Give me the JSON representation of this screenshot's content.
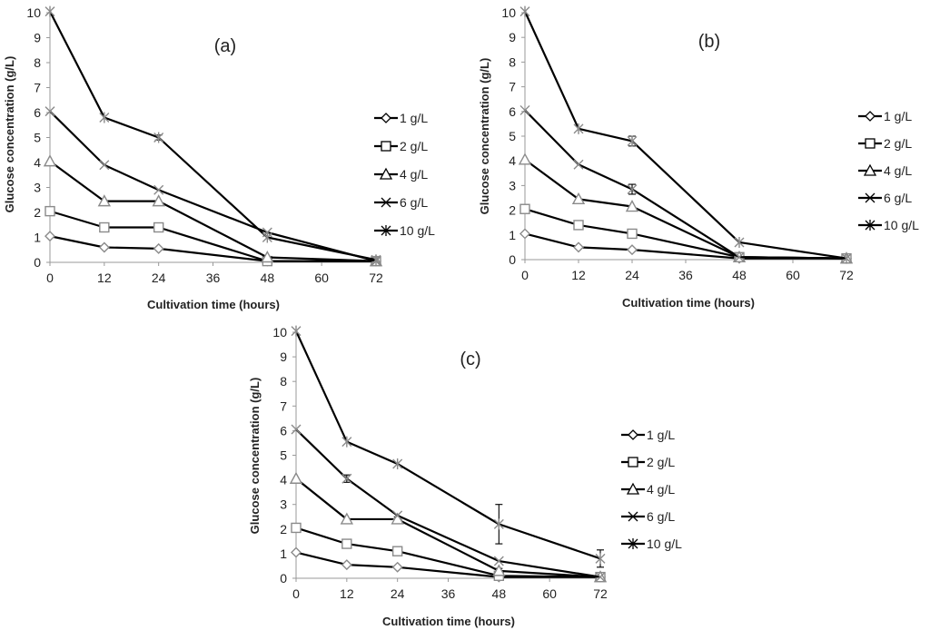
{
  "chart_data": [
    {
      "type": "line",
      "title": "(a)",
      "xlabel": "Cultivation time (hours)",
      "ylabel": "Glucose concentration (g/L)",
      "x": [
        0,
        12,
        24,
        48,
        72
      ],
      "xticks": [
        "0",
        "12",
        "24",
        "36",
        "48",
        "60",
        "72"
      ],
      "xlim": [
        0,
        72
      ],
      "ylim": [
        0,
        10
      ],
      "yticks": [
        "0",
        "1",
        "2",
        "3",
        "4",
        "5",
        "6",
        "7",
        "8",
        "9",
        "10"
      ],
      "legend_position": "right",
      "series": [
        {
          "name": "1 g/L",
          "marker": "diamond",
          "values": [
            1.05,
            0.6,
            0.55,
            0.05,
            0.05
          ],
          "errors": [
            0,
            0,
            0,
            0,
            0
          ]
        },
        {
          "name": "2 g/L",
          "marker": "square",
          "values": [
            2.05,
            1.4,
            1.4,
            0.05,
            0.05
          ],
          "errors": [
            0,
            0,
            0,
            0,
            0
          ]
        },
        {
          "name": "4 g/L",
          "marker": "triangle",
          "values": [
            4.05,
            2.45,
            2.45,
            0.2,
            0.05
          ],
          "errors": [
            0,
            0,
            0,
            0,
            0
          ]
        },
        {
          "name": "6 g/L",
          "marker": "x",
          "values": [
            6.05,
            3.9,
            2.9,
            1.2,
            0.05
          ],
          "errors": [
            0,
            0,
            0,
            0,
            0
          ]
        },
        {
          "name": "10 g/L",
          "marker": "star",
          "values": [
            10.05,
            5.8,
            5.0,
            1.0,
            0.1
          ],
          "errors": [
            0,
            0,
            0.1,
            0,
            0
          ]
        }
      ]
    },
    {
      "type": "line",
      "title": "(b)",
      "xlabel": "Cultivation time (hours)",
      "ylabel": "Glucose concentration (g/L)",
      "x": [
        0,
        12,
        24,
        48,
        72
      ],
      "xticks": [
        "0",
        "12",
        "24",
        "36",
        "48",
        "60",
        "72"
      ],
      "xlim": [
        0,
        72
      ],
      "ylim": [
        0,
        10
      ],
      "yticks": [
        "0",
        "1",
        "2",
        "3",
        "4",
        "5",
        "6",
        "7",
        "8",
        "9",
        "10"
      ],
      "legend_position": "right",
      "series": [
        {
          "name": "1 g/L",
          "marker": "diamond",
          "values": [
            1.05,
            0.5,
            0.4,
            0.05,
            0.05
          ],
          "errors": [
            0,
            0,
            0,
            0,
            0
          ]
        },
        {
          "name": "2 g/L",
          "marker": "square",
          "values": [
            2.05,
            1.4,
            1.05,
            0.1,
            0.05
          ],
          "errors": [
            0,
            0,
            0,
            0,
            0
          ]
        },
        {
          "name": "4 g/L",
          "marker": "triangle",
          "values": [
            4.05,
            2.45,
            2.15,
            0.1,
            0.05
          ],
          "errors": [
            0,
            0,
            0,
            0,
            0
          ]
        },
        {
          "name": "6 g/L",
          "marker": "x",
          "values": [
            6.05,
            3.85,
            2.85,
            0.1,
            0.05
          ],
          "errors": [
            0,
            0,
            0.2,
            0,
            0
          ]
        },
        {
          "name": "10 g/L",
          "marker": "star",
          "values": [
            10.05,
            5.3,
            4.8,
            0.7,
            0.05
          ],
          "errors": [
            0,
            0,
            0.2,
            0,
            0
          ]
        }
      ]
    },
    {
      "type": "line",
      "title": "(c)",
      "xlabel": "Cultivation time (hours)",
      "ylabel": "Glucose concentration (g/L)",
      "x": [
        0,
        12,
        24,
        48,
        72
      ],
      "xticks": [
        "0",
        "12",
        "24",
        "36",
        "48",
        "60",
        "72"
      ],
      "xlim": [
        0,
        72
      ],
      "ylim": [
        0,
        10
      ],
      "yticks": [
        "0",
        "1",
        "2",
        "3",
        "4",
        "5",
        "6",
        "7",
        "8",
        "9",
        "10"
      ],
      "legend_position": "right",
      "series": [
        {
          "name": "1 g/L",
          "marker": "diamond",
          "values": [
            1.05,
            0.55,
            0.45,
            0.05,
            0.05
          ],
          "errors": [
            0,
            0,
            0,
            0,
            0
          ]
        },
        {
          "name": "2 g/L",
          "marker": "square",
          "values": [
            2.05,
            1.4,
            1.1,
            0.1,
            0.05
          ],
          "errors": [
            0,
            0,
            0,
            0,
            0
          ]
        },
        {
          "name": "4 g/L",
          "marker": "triangle",
          "values": [
            4.05,
            2.4,
            2.4,
            0.3,
            0.05
          ],
          "errors": [
            0,
            0,
            0.1,
            0.1,
            0
          ]
        },
        {
          "name": "6 g/L",
          "marker": "x",
          "values": [
            6.05,
            4.05,
            2.55,
            0.7,
            0.05
          ],
          "errors": [
            0,
            0.15,
            0,
            0,
            0
          ]
        },
        {
          "name": "10 g/L",
          "marker": "star",
          "values": [
            10.05,
            5.55,
            4.65,
            2.2,
            0.8
          ],
          "errors": [
            0,
            0,
            0,
            0.8,
            0.35
          ]
        }
      ]
    }
  ]
}
